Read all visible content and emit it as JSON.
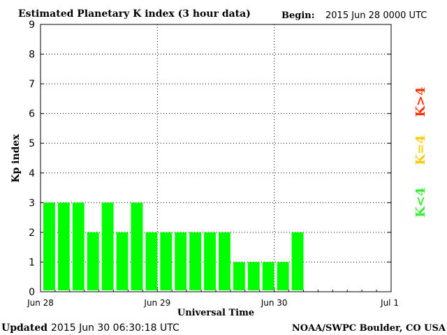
{
  "header": {
    "title": "Estimated Planetary K index (3 hour data)",
    "begin_label": "Begin:",
    "begin_value": "2015 Jun 28 0000 UTC"
  },
  "footer": {
    "updated_label": "Updated",
    "updated_value": "2015 Jun 30 06:30:18 UTC",
    "source": "NOAA/SWPC Boulder, CO USA"
  },
  "legend": {
    "low": {
      "text": "K<4",
      "color": "#33ee33"
    },
    "mid": {
      "text": "K=4",
      "color": "#ffcc00"
    },
    "high": {
      "text": "K>4",
      "color": "#ff3300"
    }
  },
  "chart_data": {
    "type": "bar",
    "title": "Estimated Planetary K index (3 hour data)",
    "xlabel": "Universal Time",
    "ylabel": "Kp index",
    "ylim": [
      0,
      9
    ],
    "yticks": [
      "0",
      "1",
      "2",
      "3",
      "4",
      "5",
      "6",
      "7",
      "8",
      "9"
    ],
    "xticks": [
      "Jun 28",
      "Jun 29",
      "Jun 30",
      "Jul 1"
    ],
    "bar_color": "#00ff00",
    "grid": true,
    "values": [
      3,
      3,
      3,
      2,
      3,
      2,
      3,
      2,
      2,
      2,
      2,
      2,
      2,
      1,
      1,
      1,
      1,
      2
    ],
    "slots_total": 24
  }
}
